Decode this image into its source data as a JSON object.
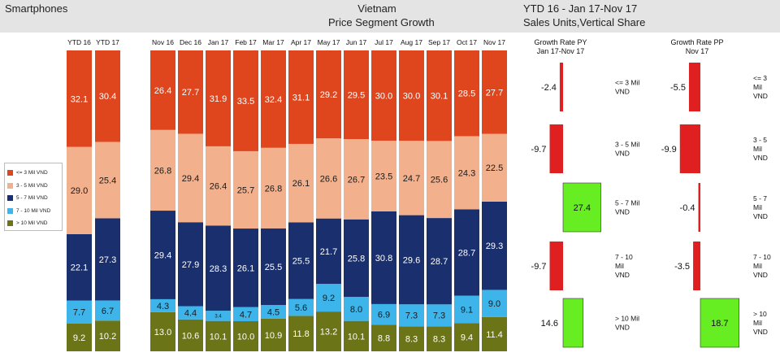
{
  "header": {
    "left": "Smartphones",
    "center_line1": "Vietnam",
    "center_line2": "Price Segment Growth",
    "right_line1": "YTD 16 - Jan 17-Nov 17",
    "right_line2": "Sales Units,Vertical Share"
  },
  "colors": {
    "seg_le3": "#e0461e",
    "seg_3_5": "#f2b08c",
    "seg_5_7": "#1a2f6e",
    "seg_7_10": "#3db4ea",
    "seg_gt10": "#6b7417",
    "negative": "#e02020",
    "positive": "#66ee22",
    "header_bg": "#e4e4e4"
  },
  "legend": [
    "<= 3 Mil VND",
    "3 - 5 Mil VND",
    "5 - 7 Mil VND",
    "7 - 10 Mil VND",
    "> 10 Mil VND"
  ],
  "chart_data": [
    {
      "type": "bar",
      "stacked": true,
      "normalized": true,
      "title": "Price Segment Growth",
      "categories": [
        "YTD 16",
        "YTD 17",
        "Nov 16",
        "Dec 16",
        "Jan 17",
        "Feb 17",
        "Mar 17",
        "Apr 17",
        "May 17",
        "Jun 17",
        "Jul 17",
        "Aug 17",
        "Sep 17",
        "Oct 17",
        "Nov 17"
      ],
      "series": [
        {
          "name": "> 10 Mil VND",
          "values": [
            9.2,
            10.2,
            13.0,
            10.6,
            10.1,
            10.0,
            10.9,
            11.8,
            13.2,
            10.1,
            8.8,
            8.3,
            8.3,
            9.4,
            11.4
          ]
        },
        {
          "name": "7 - 10 Mil VND",
          "values": [
            7.7,
            6.7,
            4.3,
            4.4,
            3.4,
            4.7,
            4.5,
            5.6,
            9.2,
            8.0,
            6.9,
            7.3,
            7.3,
            9.1,
            9.0
          ]
        },
        {
          "name": "5 - 7 Mil VND",
          "values": [
            22.1,
            27.3,
            29.4,
            27.9,
            28.3,
            26.1,
            25.5,
            25.5,
            21.7,
            25.8,
            30.8,
            29.6,
            28.7,
            28.7,
            29.3
          ]
        },
        {
          "name": "3 - 5 Mil VND",
          "values": [
            29.0,
            25.4,
            26.8,
            29.4,
            26.4,
            25.7,
            26.8,
            26.1,
            26.6,
            26.7,
            23.5,
            24.7,
            25.6,
            24.3,
            22.5
          ]
        },
        {
          "name": "<= 3 Mil VND",
          "values": [
            32.1,
            30.4,
            26.4,
            27.7,
            31.9,
            33.5,
            32.4,
            31.1,
            29.2,
            29.5,
            30.0,
            30.0,
            30.1,
            28.5,
            27.7
          ]
        }
      ],
      "ylim": [
        0,
        100
      ]
    },
    {
      "type": "bar",
      "orientation": "horizontal",
      "title": "Growth Rate PY Jan 17-Nov 17",
      "categories": [
        "<= 3 Mil VND",
        "3 - 5 Mil VND",
        "5 - 7 Mil VND",
        "7 - 10 Mil VND",
        "> 10 Mil VND"
      ],
      "values": [
        -2.4,
        -9.7,
        27.4,
        -9.7,
        14.6
      ]
    },
    {
      "type": "bar",
      "orientation": "horizontal",
      "title": "Growth Rate PP Nov 17",
      "categories": [
        "<= 3 Mil VND",
        "3 - 5 Mil VND",
        "5 - 7 Mil VND",
        "7 - 10 Mil VND",
        "> 10 Mil VND"
      ],
      "values": [
        -5.5,
        -9.9,
        -0.4,
        -3.5,
        18.7
      ]
    }
  ],
  "growth_labels": {
    "py_title_1": "Growth Rate PY",
    "py_title_2": "Jan 17-Nov 17",
    "pp_title_1": "Growth Rate PP",
    "pp_title_2": "Nov 17",
    "py_seg_lines": [
      [
        "<= 3 Mil",
        "VND"
      ],
      [
        "3 - 5 Mil",
        "VND"
      ],
      [
        "5 - 7 Mil",
        "VND"
      ],
      [
        "7 - 10",
        "Mil",
        "VND"
      ],
      [
        "> 10 Mil",
        "VND"
      ]
    ],
    "pp_seg_lines": [
      [
        "<= 3",
        "Mil",
        "VND"
      ],
      [
        "3 - 5",
        "Mil",
        "VND"
      ],
      [
        "5 - 7",
        "Mil",
        "VND"
      ],
      [
        "7 - 10",
        "Mil",
        "VND"
      ],
      [
        "> 10",
        "Mil",
        "VND"
      ]
    ]
  }
}
